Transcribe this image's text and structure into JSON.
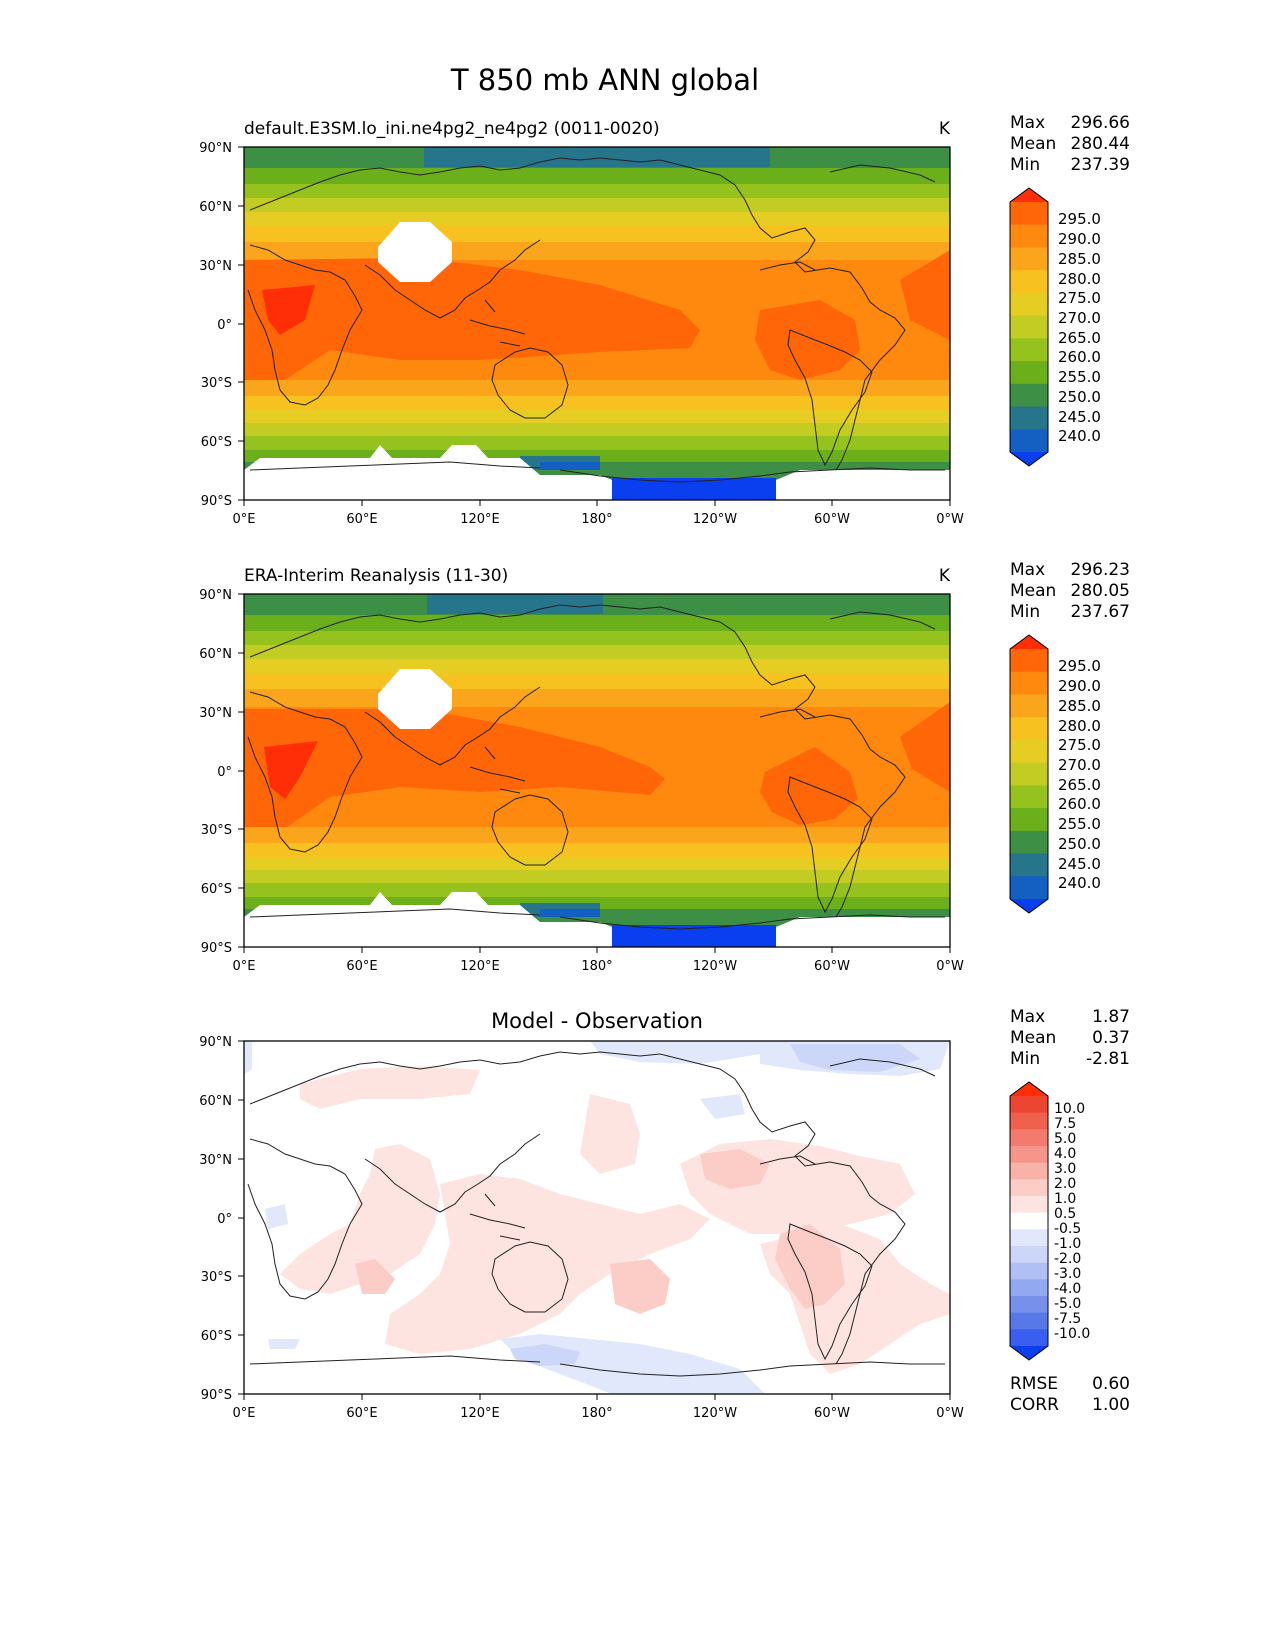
{
  "suptitle": "T 850 mb ANN global",
  "x_ticks": [
    "0°E",
    "60°E",
    "120°E",
    "180°",
    "120°W",
    "60°W",
    "0°W"
  ],
  "y_ticks": [
    "90°N",
    "60°N",
    "30°N",
    "0°",
    "30°S",
    "60°S",
    "90°S"
  ],
  "panels": [
    {
      "title_left": "default.E3SM.lo_ini.ne4pg2_ne4pg2 (0011-0020)",
      "title_right": "K",
      "stats": [
        {
          "label": "Max",
          "value": "296.66"
        },
        {
          "label": "Mean",
          "value": "280.44"
        },
        {
          "label": "Min",
          "value": "237.39"
        }
      ],
      "colorbar_labels": [
        "295.0",
        "290.0",
        "285.0",
        "280.0",
        "275.0",
        "270.0",
        "265.0",
        "260.0",
        "255.0",
        "250.0",
        "245.0",
        "240.0"
      ]
    },
    {
      "title_left": "ERA-Interim Reanalysis (11-30)",
      "title_right": "K",
      "stats": [
        {
          "label": "Max",
          "value": "296.23"
        },
        {
          "label": "Mean",
          "value": "280.05"
        },
        {
          "label": "Min",
          "value": "237.67"
        }
      ],
      "colorbar_labels": [
        "295.0",
        "290.0",
        "285.0",
        "280.0",
        "275.0",
        "270.0",
        "265.0",
        "260.0",
        "255.0",
        "250.0",
        "245.0",
        "240.0"
      ]
    },
    {
      "title_center": "Model - Observation",
      "stats": [
        {
          "label": "Max",
          "value": "1.87"
        },
        {
          "label": "Mean",
          "value": "0.37"
        },
        {
          "label": "Min",
          "value": "-2.81"
        }
      ],
      "colorbar_labels": [
        "10.0",
        "7.5",
        "5.0",
        "4.0",
        "3.0",
        "2.0",
        "1.0",
        "0.5",
        "-0.5",
        "-1.0",
        "-2.0",
        "-3.0",
        "-4.0",
        "-5.0",
        "-7.5",
        "-10.0"
      ],
      "metrics": [
        {
          "label": "RMSE",
          "value": "0.60"
        },
        {
          "label": "CORR",
          "value": "1.00"
        }
      ]
    }
  ],
  "colors": {
    "temp_scale": [
      "#ff2e07",
      "#ff6608",
      "#ff880f",
      "#fba51c",
      "#f7c21f",
      "#e6cd24",
      "#c3cc23",
      "#96c21e",
      "#6bb01b",
      "#3c8f44",
      "#27758a",
      "#1360c2",
      "#0a3ff0"
    ],
    "diff_pos": [
      "#fde4e0",
      "#fbcdc6",
      "#f8b2a8",
      "#f6968a",
      "#f37a6c",
      "#f0604f",
      "#ec4531",
      "#ff2e07"
    ],
    "diff_neg": [
      "#e2e8fb",
      "#ccd6f8",
      "#b0c0f4",
      "#92a8f0",
      "#7690ec",
      "#5878e8",
      "#3a5ff0",
      "#0a3ff0"
    ]
  }
}
